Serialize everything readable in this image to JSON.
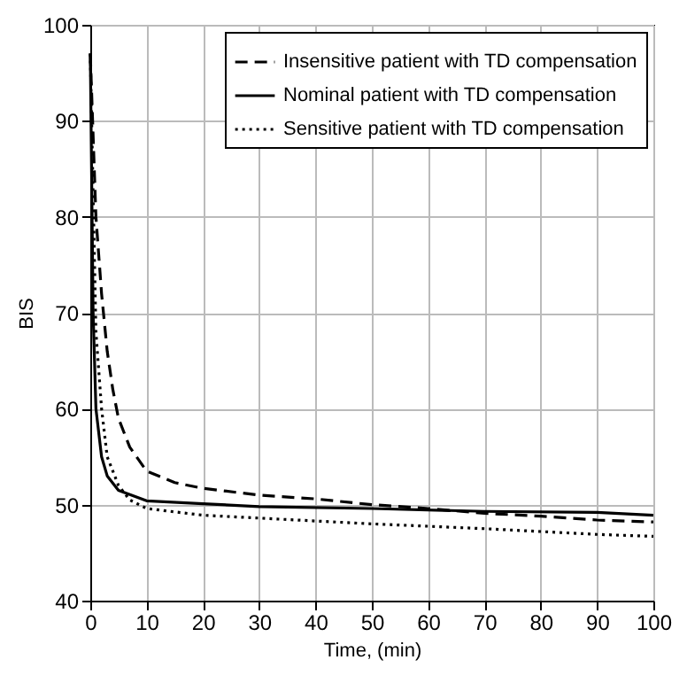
{
  "chart_data": {
    "type": "line",
    "xlabel": "Time, (min)",
    "ylabel": "BIS",
    "xlim": [
      0,
      100
    ],
    "xticks": [
      0,
      10,
      20,
      30,
      40,
      50,
      60,
      70,
      80,
      90,
      100
    ],
    "ylim": [
      40,
      100
    ],
    "yticks": [
      40,
      50,
      60,
      70,
      80,
      90,
      100
    ],
    "grid": true,
    "legend": "top right",
    "marker": "none",
    "series": [
      {
        "name": "Insensitive patient with TD compensation",
        "color": "#000000",
        "line_style": "dashed",
        "x": [
          0,
          1,
          2,
          3,
          4,
          5,
          7,
          10,
          15,
          20,
          30,
          40,
          50,
          60,
          70,
          80,
          90,
          100
        ],
        "values": [
          97,
          80,
          72,
          66,
          62,
          59,
          56,
          53.5,
          52.3,
          51.7,
          51,
          50.6,
          50,
          49.6,
          49.1,
          48.8,
          48.4,
          48.2
        ]
      },
      {
        "name": "Nominal patient with TD compensation",
        "color": "#000000",
        "line_style": "solid",
        "x": [
          0,
          0.5,
          1,
          2,
          3,
          5,
          10,
          20,
          30,
          50,
          70,
          90,
          100
        ],
        "values": [
          97,
          70,
          60,
          55,
          53,
          51.5,
          50.4,
          50.1,
          49.8,
          49.6,
          49.3,
          49.2,
          48.9
        ]
      },
      {
        "name": "Sensitive patient with TD compensation",
        "color": "#000000",
        "line_style": "dotted",
        "x": [
          0,
          1,
          2,
          3,
          5,
          7,
          10,
          20,
          30,
          50,
          70,
          90,
          100
        ],
        "values": [
          97,
          68,
          60,
          55,
          52,
          50.5,
          49.6,
          48.9,
          48.6,
          48,
          47.5,
          46.9,
          46.7
        ]
      }
    ]
  }
}
